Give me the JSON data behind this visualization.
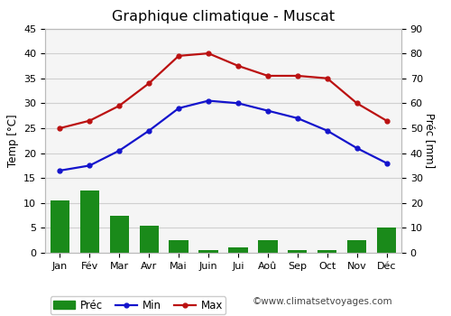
{
  "title": "Graphique climatique - Muscat",
  "months": [
    "Jan",
    "Fév",
    "Mar",
    "Avr",
    "Mai",
    "Juin",
    "Jui",
    "Aoû",
    "Sep",
    "Oct",
    "Nov",
    "Déc"
  ],
  "temp_min": [
    16.5,
    17.5,
    20.5,
    24.5,
    29.0,
    30.5,
    30.0,
    28.5,
    27.0,
    24.5,
    21.0,
    18.0
  ],
  "temp_max": [
    25.0,
    26.5,
    29.5,
    34.0,
    39.5,
    40.0,
    37.5,
    35.5,
    35.5,
    35.0,
    30.0,
    26.5
  ],
  "precip": [
    10.5,
    12.5,
    7.5,
    5.5,
    2.5,
    0.5,
    1.0,
    2.5,
    0.5,
    0.5,
    2.5,
    5.0
  ],
  "temp_ylim": [
    0,
    45
  ],
  "precip_ylim": [
    0,
    90
  ],
  "temp_yticks": [
    0,
    5,
    10,
    15,
    20,
    25,
    30,
    35,
    40,
    45
  ],
  "precip_yticks": [
    0,
    10,
    20,
    30,
    40,
    50,
    60,
    70,
    80,
    90
  ],
  "bar_color": "#1a8a1a",
  "min_color": "#1414cc",
  "max_color": "#bb1111",
  "background_color": "#ffffff",
  "plot_bg_color": "#f5f5f5",
  "grid_color": "#d0d0d0",
  "ylabel_left": "Temp [°C]",
  "ylabel_right": "Préc [mm]",
  "watermark": "©www.climatsetvoyages.com",
  "title_fontsize": 11.5,
  "axis_label_fontsize": 8.5,
  "tick_fontsize": 8,
  "legend_fontsize": 8.5,
  "watermark_fontsize": 7.5
}
